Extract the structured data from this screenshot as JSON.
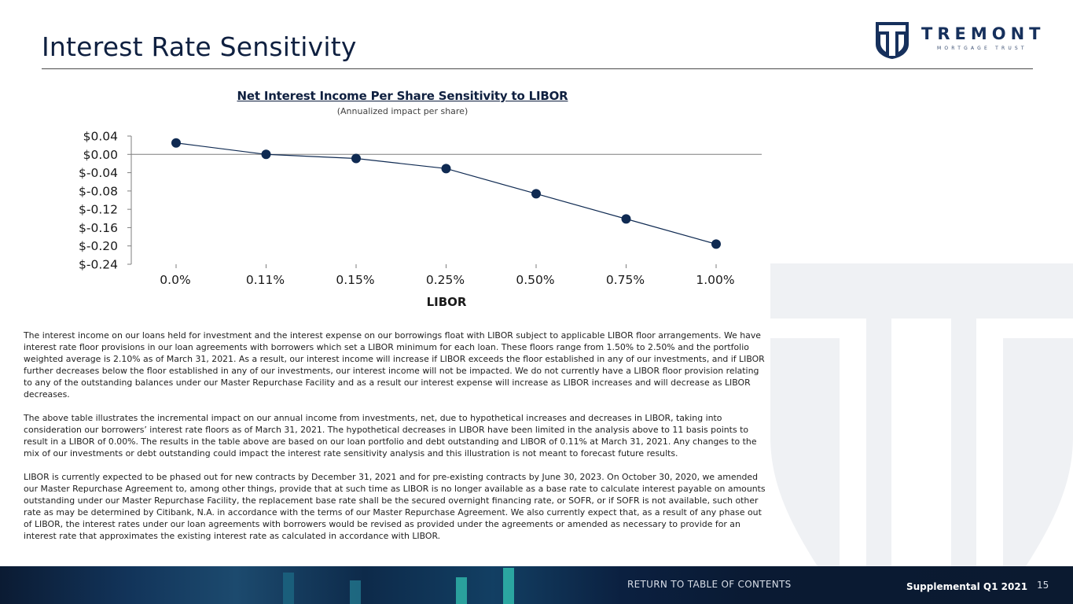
{
  "page": {
    "title": "Interest Rate Sensitivity"
  },
  "logo": {
    "name": "TREMONT",
    "tagline": "MORTGAGE TRUST",
    "colors": {
      "primary": "#16305c",
      "secondary": "#3b4f72"
    }
  },
  "chart_data": {
    "type": "line",
    "title": "Net Interest Income Per Share Sensitivity to LIBOR",
    "subtitle": "(Annualized impact per share)",
    "xlabel": "LIBOR",
    "ylabel": "",
    "categories": [
      "0.0%",
      "0.11%",
      "0.15%",
      "0.25%",
      "0.50%",
      "0.75%",
      "1.00%"
    ],
    "series": [
      {
        "values": [
          0.025,
          0.0,
          -0.009,
          -0.031,
          -0.086,
          -0.141,
          -0.196
        ]
      }
    ],
    "ylim": [
      -0.24,
      0.04
    ],
    "yticks": [
      0.04,
      0.0,
      -0.04,
      -0.08,
      -0.12,
      -0.16,
      -0.2,
      -0.24
    ],
    "ytick_labels": [
      "$0.04",
      "$0.00",
      "$-0.04",
      "$-0.08",
      "$-0.12",
      "$-0.16",
      "$-0.20",
      "$-0.24"
    ],
    "grid": false,
    "legend": "none",
    "colors": {
      "line": "#0f2a52",
      "marker": "#0f2a52",
      "zero_line": "#7f7f7f"
    }
  },
  "body": {
    "paragraphs": [
      "The interest income on our loans held for investment and the interest expense on our borrowings float with LIBOR subject to applicable LIBOR floor arrangements. We have interest rate floor provisions in our loan agreements with borrowers which set a LIBOR minimum for each loan. These floors range from 1.50% to 2.50% and the portfolio weighted average is 2.10% as of March 31, 2021. As a result, our interest income will increase if LIBOR exceeds the floor established in any of our investments, and if LIBOR further decreases below the floor established in any of our investments, our interest income will not be impacted. We do not currently have a LIBOR floor provision relating to any of the outstanding balances under our Master Repurchase Facility and as a result our interest expense will increase as LIBOR increases and will decrease as LIBOR decreases.",
      "The above table illustrates the incremental impact on our annual income from investments, net, due to hypothetical increases and decreases in LIBOR, taking into consideration our borrowers’ interest rate floors as of March 31, 2021. The hypothetical decreases in LIBOR have been limited in the analysis above to 11 basis points to result in a LIBOR of 0.00%. The results in the table above are based on our loan portfolio and debt outstanding and LIBOR of 0.11% at March 31, 2021. Any changes to the mix of our investments or debt outstanding could impact the interest rate sensitivity analysis and this illustration is not meant to forecast future results.",
      "LIBOR is currently expected to be phased out for new contracts by December 31, 2021 and for pre-existing contracts by June 30, 2023. On October 30, 2020, we amended our Master Repurchase Agreement to, among other things, provide that at such time as LIBOR is no longer available as a base rate to calculate interest payable on amounts outstanding under our Master Repurchase Facility, the replacement base rate shall be the secured overnight financing rate, or SOFR, or if SOFR is not available, such other rate as may be determined by Citibank, N.A. in accordance with the terms of our Master Repurchase Agreement. We also currently expect that, as a result of any phase out of LIBOR, the interest rates under our loan agreements with borrowers would be revised as provided under the agreements or amended as necessary to provide for an interest rate that approximates the existing interest rate as calculated in accordance with LIBOR."
    ]
  },
  "footer": {
    "toc_link": "RETURN TO TABLE OF CONTENTS",
    "report": "Supplemental Q1 2021",
    "page_number": "15",
    "colors": {
      "background": "#0b1b33",
      "accent": "#2fb3a8"
    }
  }
}
